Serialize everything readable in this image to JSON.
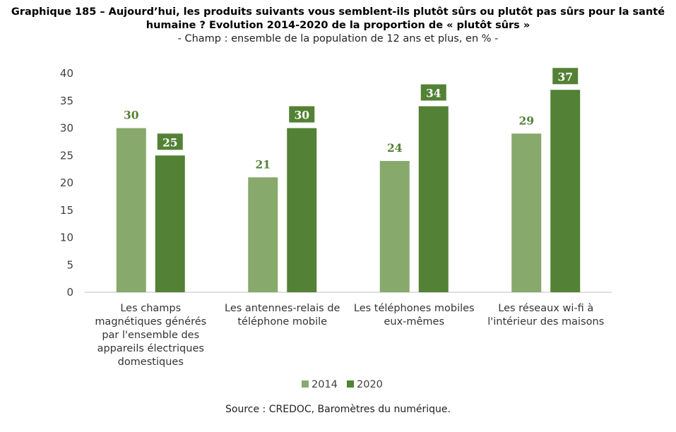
{
  "title": "Graphique 185 – Aujourd’hui, les produits suivants vous semblent-ils plutôt sûrs ou plutôt pas sûrs pour la santé humaine ? Evolution 2014-2020 de la proportion de « plutôt sûrs »",
  "subtitle": "- Champ : ensemble de la population de 12 ans et plus, en % -",
  "source": "Source : CREDOC, Baromètres du numérique.",
  "colors": {
    "series_2014": "#87a96b",
    "series_2020": "#538135",
    "axis": "#bfbfbf",
    "tick_text": "#404040",
    "label_2014": "#538135"
  },
  "chart_data": {
    "type": "bar",
    "categories": [
      [
        "Les champs",
        "magnétiques générés",
        "par l'ensemble des",
        "appareils électriques",
        "domestiques"
      ],
      [
        "Les antennes-relais de",
        "téléphone mobile"
      ],
      [
        "Les téléphones mobiles",
        "eux-mêmes"
      ],
      [
        "Les réseaux wi-fi à",
        "l'intérieur des maisons"
      ]
    ],
    "series": [
      {
        "name": "2014",
        "values": [
          30,
          21,
          24,
          29
        ]
      },
      {
        "name": "2020",
        "values": [
          25,
          30,
          34,
          37
        ]
      }
    ],
    "ylim": [
      0,
      40
    ],
    "yticks": [
      0,
      5,
      10,
      15,
      20,
      25,
      30,
      35,
      40
    ],
    "grid": false,
    "legend_position": "bottom"
  }
}
